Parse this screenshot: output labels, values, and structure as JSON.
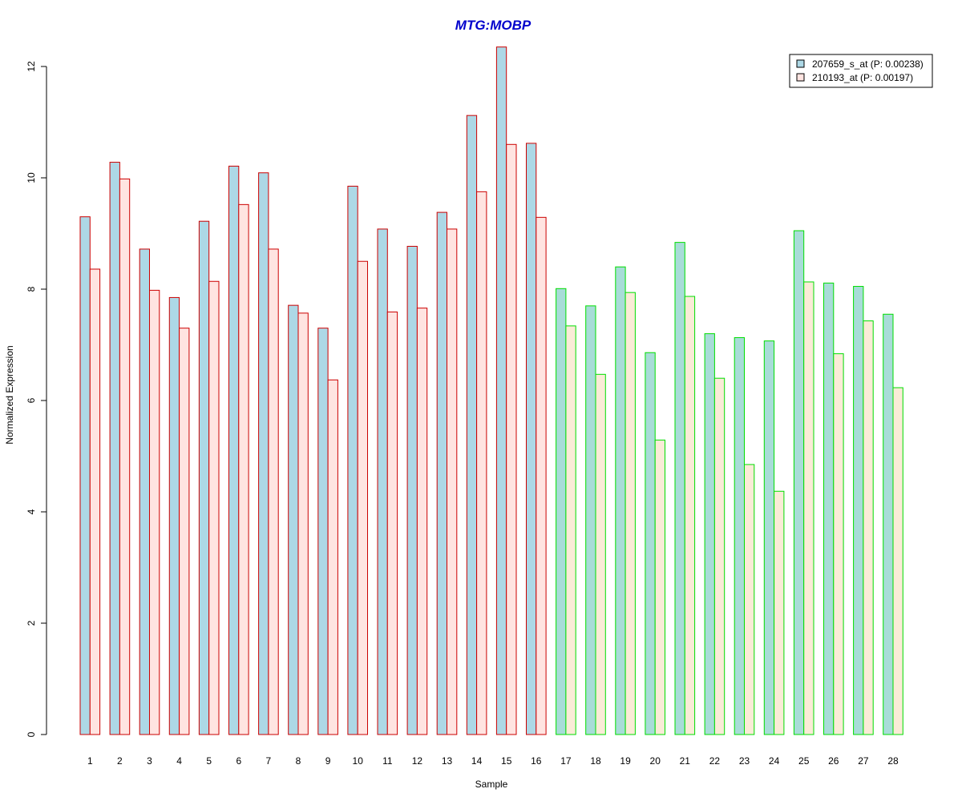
{
  "chart_data": {
    "type": "bar",
    "title": "MTG:MOBP",
    "xlabel": "Sample",
    "ylabel": "Normalized Expression",
    "ylim": [
      0,
      12
    ],
    "yticks": [
      0,
      2,
      4,
      6,
      8,
      10,
      12
    ],
    "categories": [
      "1",
      "2",
      "3",
      "4",
      "5",
      "6",
      "7",
      "8",
      "9",
      "10",
      "11",
      "12",
      "13",
      "14",
      "15",
      "16",
      "17",
      "18",
      "19",
      "20",
      "21",
      "22",
      "23",
      "24",
      "25",
      "26",
      "27",
      "28"
    ],
    "series": [
      {
        "name": "207659_s_at (P: 0.00238)",
        "fill": "#add8e6",
        "values": [
          9.3,
          10.28,
          8.72,
          7.85,
          9.22,
          10.21,
          10.09,
          7.71,
          7.3,
          9.85,
          9.08,
          8.77,
          9.38,
          11.12,
          12.35,
          10.62,
          8.01,
          7.7,
          8.4,
          6.86,
          8.84,
          7.2,
          7.13,
          7.07,
          9.05,
          8.11,
          8.05,
          7.55
        ]
      },
      {
        "name": "210193_at (P: 0.00197)",
        "fill": "#ffe4e1",
        "values": [
          8.36,
          9.98,
          7.98,
          7.3,
          8.14,
          9.52,
          8.72,
          7.57,
          6.37,
          8.5,
          7.59,
          7.66,
          9.08,
          9.75,
          10.6,
          9.29,
          7.34,
          6.47,
          7.94,
          5.29,
          7.87,
          6.4,
          4.85,
          4.37,
          8.13,
          6.84,
          7.43,
          6.23
        ]
      }
    ],
    "group_border_colors": [
      "#cc0000",
      "#cc0000",
      "#cc0000",
      "#cc0000",
      "#cc0000",
      "#cc0000",
      "#cc0000",
      "#cc0000",
      "#cc0000",
      "#cc0000",
      "#cc0000",
      "#cc0000",
      "#cc0000",
      "#cc0000",
      "#cc0000",
      "#cc0000",
      "#00dd00",
      "#00dd00",
      "#00dd00",
      "#00dd00",
      "#00dd00",
      "#00dd00",
      "#00dd00",
      "#00dd00",
      "#00dd00",
      "#00dd00",
      "#00dd00",
      "#00dd00"
    ],
    "group_fill_b_green": "#faebd7",
    "group_fill_a_green": "#a8dcd8",
    "legend_position": "top-right",
    "grid": false
  }
}
